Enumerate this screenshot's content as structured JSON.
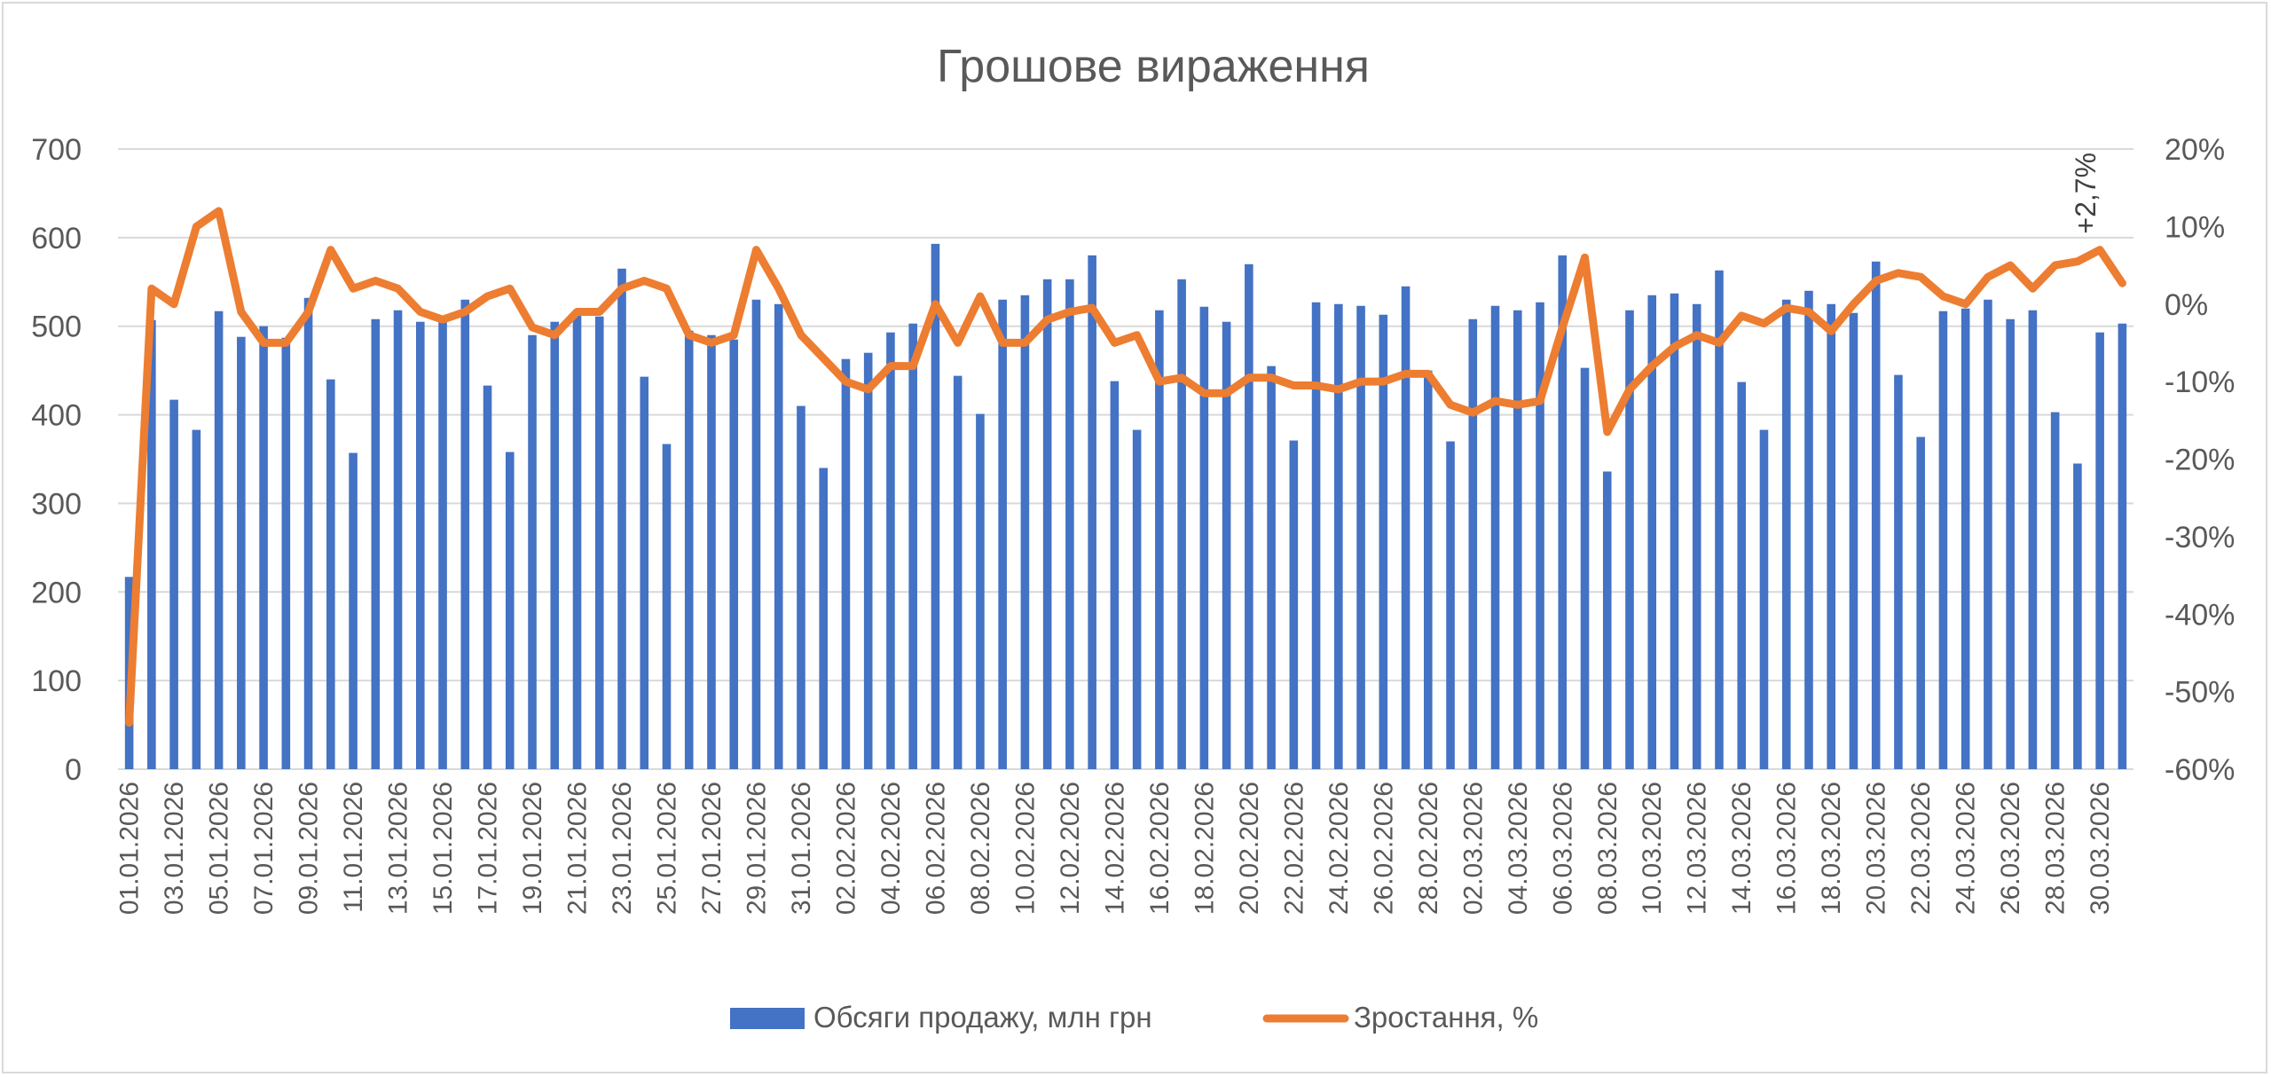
{
  "chart_data": {
    "type": "bar+line",
    "title": "Грошове вираження",
    "left_axis": {
      "ylim": [
        0,
        700
      ],
      "ticks": [
        "0",
        "100",
        "200",
        "300",
        "400",
        "500",
        "600",
        "700"
      ]
    },
    "right_axis": {
      "ylim": [
        -60,
        20
      ],
      "ticks": [
        "-60%",
        "-50%",
        "-40%",
        "-30%",
        "-20%",
        "-10%",
        "0%",
        "10%",
        "20%"
      ]
    },
    "x_tick_labels": [
      "01.01.2026",
      "03.01.2026",
      "05.01.2026",
      "07.01.2026",
      "09.01.2026",
      "11.01.2026",
      "13.01.2026",
      "15.01.2026",
      "17.01.2026",
      "19.01.2026",
      "21.01.2026",
      "23.01.2026",
      "25.01.2026",
      "27.01.2026",
      "29.01.2026",
      "31.01.2026",
      "02.02.2026",
      "04.02.2026",
      "06.02.2026",
      "08.02.2026",
      "10.02.2026",
      "12.02.2026",
      "14.02.2026",
      "16.02.2026",
      "18.02.2026",
      "20.02.2026",
      "22.02.2026",
      "24.02.2026",
      "26.02.2026",
      "28.02.2026",
      "02.03.2026",
      "04.03.2026",
      "06.03.2026",
      "08.03.2026",
      "10.03.2026",
      "12.03.2026",
      "14.03.2026",
      "16.03.2026",
      "18.03.2026",
      "20.03.2026",
      "22.03.2026",
      "24.03.2026",
      "26.03.2026",
      "28.03.2026",
      "30.03.2026"
    ],
    "categories_count": 90,
    "series": [
      {
        "name": "Обсяги продажу, млн грн",
        "kind": "bar",
        "axis": "left",
        "color": "#4472C4",
        "values": [
          217,
          507,
          417,
          383,
          517,
          488,
          500,
          487,
          532,
          440,
          357,
          508,
          518,
          505,
          510,
          530,
          433,
          358,
          490,
          505,
          512,
          511,
          565,
          443,
          367,
          495,
          490,
          485,
          530,
          525,
          410,
          340,
          463,
          470,
          493,
          503,
          593,
          444,
          401,
          530,
          535,
          553,
          553,
          580,
          438,
          383,
          518,
          553,
          522,
          505,
          570,
          455,
          371,
          527,
          525,
          523,
          513,
          545,
          450,
          370,
          508,
          523,
          518,
          527,
          580,
          453,
          336,
          518,
          535,
          537,
          525,
          563,
          437,
          383,
          530,
          540,
          525,
          515,
          573,
          445,
          375,
          517,
          520,
          530,
          508,
          518,
          403,
          345,
          493,
          503
        ]
      },
      {
        "name": "Зростання, %",
        "kind": "line",
        "axis": "right",
        "color": "#ED7D31",
        "values": [
          -54,
          2,
          0,
          10,
          12,
          -1,
          -5,
          -5,
          -1,
          7,
          2,
          3,
          2,
          -1,
          -2,
          -1,
          1,
          2,
          -3,
          -4,
          -1,
          -1,
          2,
          3,
          2,
          -4,
          -5,
          -4,
          7,
          2,
          -4,
          -7,
          -10,
          -11,
          -8,
          -8,
          0,
          -5,
          1,
          -5,
          -5,
          -2,
          -1,
          -0.5,
          -5,
          -4,
          -10,
          -9.5,
          -11.5,
          -11.5,
          -9.5,
          -9.5,
          -10.5,
          -10.5,
          -11,
          -10,
          -10,
          -9,
          -9,
          -13,
          -14,
          -12.5,
          -13,
          -12.5,
          -3,
          6,
          -16.5,
          -11,
          -8,
          -5.5,
          -4,
          -5,
          -1.5,
          -2.5,
          -0.5,
          -1,
          -3.5,
          0,
          3,
          4,
          3.5,
          1,
          0,
          3.5,
          5,
          2,
          5,
          5.5,
          7,
          2.7
        ]
      }
    ],
    "annotation": "+2,7%",
    "legend_position": "bottom",
    "grid": true
  },
  "legend": {
    "bar_label": "Обсяги продажу, млн грн",
    "line_label": "Зростання, %"
  }
}
